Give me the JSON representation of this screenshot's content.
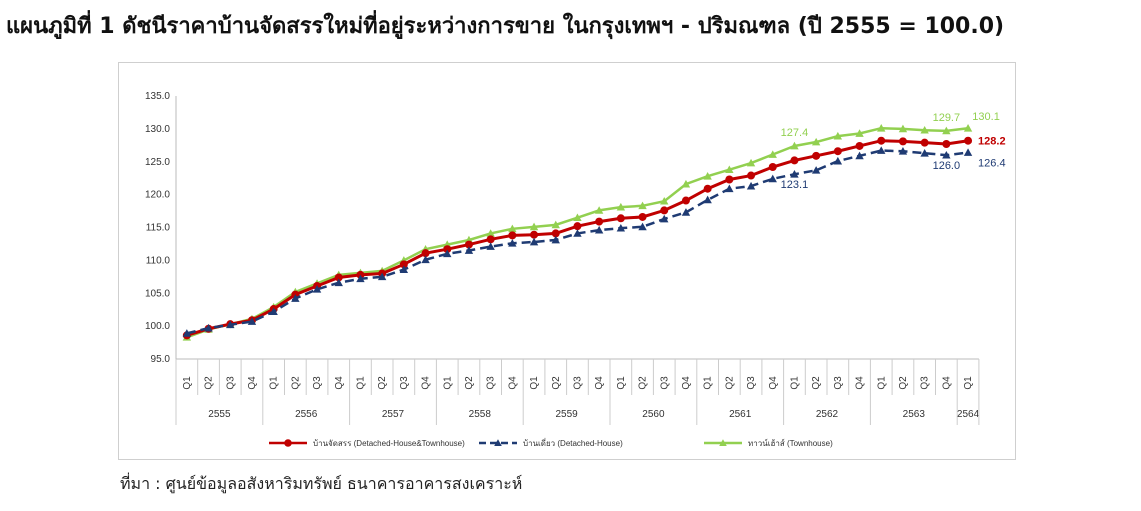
{
  "title": "แผนภูมิที่ 1 ดัชนีราคาบ้านจัดสรรใหม่ที่อยู่ระหว่างการขาย ในกรุงเทพฯ - ปริมณฑล (ปี 2555 = 100.0)",
  "source": "ที่มา : ศูนย์ข้อมูลอสังหาริมทรัพย์ ธนาคารอาคารสงเคราะห์",
  "colors": {
    "all": "#c00000",
    "detached": "#1f3b73",
    "townhouse": "#92d050"
  },
  "chart_data": {
    "type": "line",
    "ylim": [
      95,
      135
    ],
    "yticks": [
      "95.0",
      "100.0",
      "105.0",
      "110.0",
      "115.0",
      "120.0",
      "125.0",
      "130.0",
      "135.0"
    ],
    "quarters": [
      "Q1",
      "Q2",
      "Q3",
      "Q4",
      "Q1",
      "Q2",
      "Q3",
      "Q4",
      "Q1",
      "Q2",
      "Q3",
      "Q4",
      "Q1",
      "Q2",
      "Q3",
      "Q4",
      "Q1",
      "Q2",
      "Q3",
      "Q4",
      "Q1",
      "Q2",
      "Q3",
      "Q4",
      "Q1",
      "Q2",
      "Q3",
      "Q4",
      "Q1",
      "Q2",
      "Q3",
      "Q4",
      "Q1",
      "Q2",
      "Q3",
      "Q4",
      "Q1"
    ],
    "years": [
      "2555",
      "2556",
      "2557",
      "2558",
      "2559",
      "2560",
      "2561",
      "2562",
      "2563",
      "2564"
    ],
    "series": [
      {
        "name": "บ้านจัดสรร (Detached-House&Townhouse)",
        "marker": "circle",
        "values": [
          98.6,
          99.6,
          100.3,
          100.9,
          102.6,
          104.8,
          106.1,
          107.4,
          107.8,
          108.0,
          109.4,
          111.1,
          111.7,
          112.4,
          113.2,
          113.8,
          113.9,
          114.1,
          115.2,
          115.9,
          116.4,
          116.6,
          117.6,
          119.1,
          120.9,
          122.3,
          122.9,
          124.2,
          125.2,
          125.9,
          126.6,
          127.4,
          128.2,
          128.1,
          127.9,
          127.7,
          128.2
        ]
      },
      {
        "name": "บ้านเดี่ยว (Detached-House)",
        "marker": "triangle",
        "values": [
          98.9,
          99.7,
          100.2,
          100.7,
          102.2,
          104.2,
          105.6,
          106.6,
          107.2,
          107.5,
          108.6,
          110.1,
          111.0,
          111.5,
          112.1,
          112.6,
          112.8,
          113.1,
          114.1,
          114.6,
          114.9,
          115.1,
          116.3,
          117.3,
          119.2,
          120.9,
          121.3,
          122.4,
          123.1,
          123.7,
          125.1,
          125.9,
          126.7,
          126.6,
          126.3,
          126.0,
          126.4
        ]
      },
      {
        "name": "ทาวน์เฮ้าส์ (Townhouse)",
        "marker": "triangle",
        "values": [
          98.3,
          99.5,
          100.3,
          101.1,
          102.9,
          105.2,
          106.5,
          107.8,
          108.1,
          108.4,
          110.0,
          111.7,
          112.4,
          113.1,
          114.1,
          114.8,
          115.1,
          115.4,
          116.5,
          117.6,
          118.1,
          118.3,
          119.0,
          121.6,
          122.8,
          123.8,
          124.8,
          126.1,
          127.4,
          128.0,
          128.9,
          129.3,
          130.1,
          130.0,
          129.8,
          129.7,
          130.1
        ]
      }
    ],
    "data_labels": [
      {
        "series": 2,
        "index": 28,
        "text": "127.4"
      },
      {
        "series": 1,
        "index": 28,
        "text": "123.1"
      },
      {
        "series": 2,
        "index": 35,
        "text": "129.7"
      },
      {
        "series": 1,
        "index": 35,
        "text": "126.0"
      },
      {
        "series": 2,
        "index": 36,
        "text": "130.1"
      },
      {
        "series": 0,
        "index": 36,
        "text": "128.2"
      },
      {
        "series": 1,
        "index": 36,
        "text": "126.4"
      }
    ],
    "legend_position": "bottom",
    "grid": false
  }
}
